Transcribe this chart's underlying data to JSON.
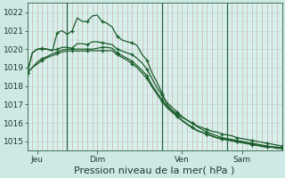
{
  "background_color": "#cce9e5",
  "plot_bg_color": "#d8f0ec",
  "grid_color_v": "#c8a0a0",
  "grid_color_h": "#b8ceca",
  "line_color": "#1a5c2a",
  "ylim": [
    1014.5,
    1022.5
  ],
  "yticks": [
    1015,
    1016,
    1017,
    1018,
    1019,
    1020,
    1021,
    1022
  ],
  "xlabel": "Pression niveau de la mer( hPa )",
  "xlabel_fontsize": 8,
  "tick_fontsize": 6.5,
  "day_labels": [
    "Jeu",
    "Dim",
    "Ven",
    "Sam"
  ],
  "day_positions": [
    2,
    14,
    31,
    43
  ],
  "vline_positions": [
    8,
    27,
    40
  ],
  "num_points": 52,
  "series": [
    [
      1018.7,
      1019.8,
      1020.0,
      1020.0,
      1020.0,
      1019.9,
      1020.9,
      1021.0,
      1020.8,
      1021.0,
      1021.7,
      1021.5,
      1021.5,
      1021.8,
      1021.85,
      1021.5,
      1021.4,
      1021.2,
      1020.7,
      1020.5,
      1020.4,
      1020.35,
      1020.2,
      1019.7,
      1019.4,
      1018.7,
      1018.2,
      1017.6,
      1017.0,
      1016.7,
      1016.5,
      1016.3,
      1016.15,
      1016.0,
      1015.85,
      1015.75,
      1015.65,
      1015.55,
      1015.5,
      1015.4,
      1015.35,
      1015.3,
      1015.2,
      1015.15,
      1015.1,
      1015.05,
      1015.0,
      1014.95,
      1014.9,
      1014.85,
      1014.8,
      1014.75
    ],
    [
      1018.7,
      1019.8,
      1020.0,
      1020.05,
      1020.0,
      1019.95,
      1020.0,
      1020.1,
      1020.1,
      1020.05,
      1020.3,
      1020.3,
      1020.25,
      1020.4,
      1020.4,
      1020.35,
      1020.3,
      1020.25,
      1020.0,
      1019.9,
      1019.8,
      1019.7,
      1019.5,
      1019.25,
      1018.9,
      1018.4,
      1017.9,
      1017.5,
      1017.1,
      1016.85,
      1016.6,
      1016.35,
      1016.15,
      1016.0,
      1015.8,
      1015.65,
      1015.5,
      1015.4,
      1015.3,
      1015.2,
      1015.15,
      1015.1,
      1015.05,
      1015.0,
      1014.95,
      1014.9,
      1014.85,
      1014.8,
      1014.75,
      1014.7,
      1014.7,
      1014.65
    ],
    [
      1018.7,
      1019.0,
      1019.3,
      1019.5,
      1019.6,
      1019.75,
      1019.85,
      1019.95,
      1020.0,
      1020.0,
      1020.0,
      1020.0,
      1020.0,
      1020.0,
      1020.05,
      1020.1,
      1020.1,
      1020.05,
      1019.8,
      1019.65,
      1019.5,
      1019.35,
      1019.1,
      1018.85,
      1018.55,
      1018.05,
      1017.65,
      1017.25,
      1016.9,
      1016.65,
      1016.4,
      1016.15,
      1015.95,
      1015.78,
      1015.6,
      1015.5,
      1015.4,
      1015.3,
      1015.2,
      1015.15,
      1015.1,
      1015.05,
      1015.0,
      1014.95,
      1014.9,
      1014.85,
      1014.8,
      1014.75,
      1014.7,
      1014.7,
      1014.65,
      1014.65
    ],
    [
      1018.7,
      1019.0,
      1019.2,
      1019.4,
      1019.55,
      1019.65,
      1019.75,
      1019.85,
      1019.9,
      1019.9,
      1019.9,
      1019.9,
      1019.9,
      1019.92,
      1019.92,
      1019.92,
      1019.92,
      1019.92,
      1019.7,
      1019.55,
      1019.4,
      1019.2,
      1019.0,
      1018.7,
      1018.4,
      1017.95,
      1017.55,
      1017.15,
      1016.82,
      1016.58,
      1016.35,
      1016.12,
      1015.92,
      1015.75,
      1015.58,
      1015.48,
      1015.38,
      1015.28,
      1015.18,
      1015.12,
      1015.08,
      1015.02,
      1014.98,
      1014.92,
      1014.88,
      1014.82,
      1014.78,
      1014.72,
      1014.68,
      1014.68,
      1014.62,
      1014.62
    ]
  ]
}
